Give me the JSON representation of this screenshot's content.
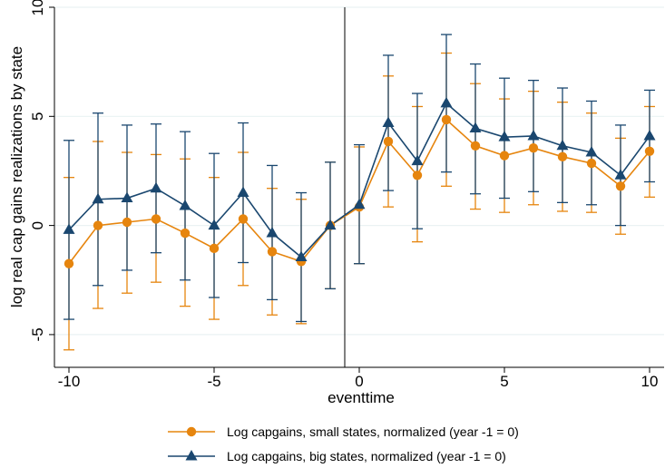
{
  "chart_data": {
    "type": "line",
    "xlabel": "eventtime",
    "ylabel": "log real cap gains realizations by state",
    "xlim": [
      -10,
      10
    ],
    "ylim": [
      -6.5,
      10
    ],
    "xticks": [
      -10,
      -5,
      0,
      5,
      10
    ],
    "yticks": [
      -5,
      0,
      5,
      10
    ],
    "xtick_labels": [
      "-10",
      "-5",
      "0",
      "5",
      "10"
    ],
    "ytick_labels": [
      "-5",
      "0",
      "5",
      "10"
    ],
    "grid": true,
    "reference_line_x": -0.5,
    "legend_position": "bottom",
    "x": [
      -10,
      -9,
      -8,
      -7,
      -6,
      -5,
      -4,
      -3,
      -2,
      -1,
      0,
      1,
      2,
      3,
      4,
      5,
      6,
      7,
      8,
      9,
      10
    ],
    "series": [
      {
        "name": "Log capgains, small states, normalized (year -1 = 0)",
        "color": "#e6850e",
        "marker": "circle",
        "values": [
          -1.75,
          0.0,
          0.15,
          0.3,
          -0.35,
          -1.05,
          0.3,
          -1.2,
          -1.65,
          0.0,
          0.85,
          3.85,
          2.3,
          4.85,
          3.65,
          3.2,
          3.55,
          3.15,
          2.85,
          1.8,
          3.4
        ],
        "ci_low": [
          -5.7,
          -3.8,
          -3.1,
          -2.6,
          -3.7,
          -4.3,
          -2.75,
          -4.1,
          -4.5,
          -2.9,
          -1.75,
          0.85,
          -0.75,
          1.8,
          0.75,
          0.6,
          0.95,
          0.65,
          0.6,
          -0.4,
          1.3
        ],
        "ci_high": [
          2.2,
          3.85,
          3.35,
          3.25,
          3.05,
          2.2,
          3.35,
          1.7,
          1.2,
          2.9,
          3.6,
          6.85,
          5.45,
          7.9,
          6.5,
          5.8,
          6.15,
          5.65,
          5.15,
          4.0,
          5.45
        ]
      },
      {
        "name": "Log capgains, big states, normalized (year -1 = 0)",
        "color": "#1a476f",
        "marker": "triangle",
        "values": [
          -0.2,
          1.2,
          1.25,
          1.7,
          0.9,
          0.0,
          1.5,
          -0.35,
          -1.45,
          0.0,
          0.95,
          4.7,
          2.95,
          5.6,
          4.45,
          4.05,
          4.1,
          3.65,
          3.35,
          2.3,
          4.1
        ],
        "ci_low": [
          -4.3,
          -2.75,
          -2.05,
          -1.25,
          -2.5,
          -3.3,
          -1.7,
          -3.4,
          -4.4,
          -2.9,
          -1.75,
          1.6,
          -0.15,
          2.45,
          1.45,
          1.25,
          1.55,
          1.05,
          0.95,
          0.0,
          2.0
        ],
        "ci_high": [
          3.9,
          5.15,
          4.6,
          4.65,
          4.3,
          3.3,
          4.7,
          2.75,
          1.5,
          2.9,
          3.7,
          7.8,
          6.05,
          8.75,
          7.4,
          6.75,
          6.65,
          6.3,
          5.7,
          4.6,
          6.2
        ]
      }
    ]
  }
}
